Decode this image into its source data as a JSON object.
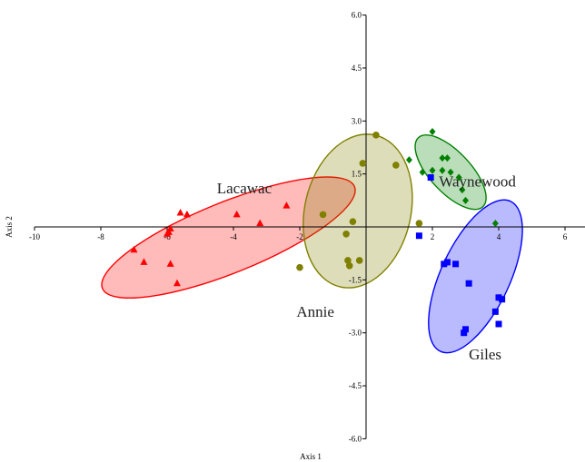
{
  "chart_data": {
    "type": "scatter",
    "title": "",
    "xlabel": "Axis 1",
    "ylabel": "Axis 2",
    "xlim": [
      -10,
      6.5
    ],
    "ylim": [
      -6.0,
      6.0
    ],
    "x_ticks": [
      -10,
      -8,
      -6,
      -4,
      -2,
      2,
      4,
      6
    ],
    "x_tick_labels": [
      "-10",
      "-8",
      "-6",
      "-4",
      "-2",
      "2",
      "4",
      "6"
    ],
    "y_ticks": [
      6.0,
      4.5,
      3.0,
      1.5,
      -1.5,
      -3.0,
      -4.5,
      -6.0
    ],
    "y_tick_labels": [
      "6.0",
      "4.5",
      "3.0",
      "1.5",
      "-1.5",
      "-3.0",
      "-4.5",
      "-6.0"
    ],
    "grid": false,
    "series": [
      {
        "name": "Lacawac",
        "marker": "triangle",
        "color": "#ff0000",
        "points": [
          [
            -5.6,
            0.4
          ],
          [
            -5.4,
            0.35
          ],
          [
            -3.9,
            0.35
          ],
          [
            -2.4,
            0.6
          ],
          [
            -3.2,
            0.1
          ],
          [
            -5.9,
            -0.05
          ],
          [
            -5.95,
            -0.15
          ],
          [
            -6.0,
            -0.2
          ],
          [
            -7.0,
            -0.65
          ],
          [
            -6.7,
            -1.0
          ],
          [
            -5.9,
            -1.05
          ],
          [
            -5.7,
            -1.6
          ]
        ],
        "ellipse": {
          "cx": -4.15,
          "cy": -0.3,
          "rx": 8.2,
          "ry": 2.0,
          "angle": 22
        }
      },
      {
        "name": "Annie",
        "marker": "circle",
        "color": "#808000",
        "points": [
          [
            0.3,
            2.6
          ],
          [
            0.9,
            1.75
          ],
          [
            -0.1,
            1.8
          ],
          [
            -1.3,
            0.35
          ],
          [
            -0.4,
            0.15
          ],
          [
            -0.6,
            -0.2
          ],
          [
            -2.0,
            -1.15
          ],
          [
            -0.55,
            -0.95
          ],
          [
            -0.5,
            -1.1
          ],
          [
            -0.2,
            -0.95
          ],
          [
            1.6,
            0.1
          ]
        ],
        "ellipse": {
          "cx": -0.25,
          "cy": 0.45,
          "rx": 4.7,
          "ry": 3.0,
          "angle": 77
        }
      },
      {
        "name": "Waynewood",
        "marker": "diamond",
        "color": "#008000",
        "points": [
          [
            2.0,
            2.7
          ],
          [
            2.3,
            1.95
          ],
          [
            2.45,
            1.95
          ],
          [
            1.3,
            1.9
          ],
          [
            2.0,
            1.6
          ],
          [
            1.7,
            1.55
          ],
          [
            2.3,
            1.6
          ],
          [
            2.55,
            1.55
          ],
          [
            2.8,
            1.4
          ],
          [
            2.9,
            1.05
          ],
          [
            3.0,
            0.75
          ],
          [
            3.9,
            0.1
          ]
        ],
        "ellipse": {
          "cx": 2.55,
          "cy": 1.55,
          "rx": 2.85,
          "ry": 1.15,
          "angle": -47
        }
      },
      {
        "name": "Giles",
        "marker": "square",
        "color": "#0000ff",
        "points": [
          [
            1.95,
            1.4
          ],
          [
            1.6,
            -0.25
          ],
          [
            2.35,
            -1.05
          ],
          [
            2.45,
            -1.0
          ],
          [
            2.7,
            -1.05
          ],
          [
            3.1,
            -1.6
          ],
          [
            4.0,
            -2.0
          ],
          [
            4.1,
            -2.05
          ],
          [
            3.9,
            -2.4
          ],
          [
            4.0,
            -2.75
          ],
          [
            3.0,
            -2.9
          ],
          [
            2.95,
            -3.0
          ]
        ],
        "ellipse": {
          "cx": 3.3,
          "cy": -1.4,
          "rx": 5.0,
          "ry": 1.95,
          "angle": 65
        }
      }
    ]
  }
}
